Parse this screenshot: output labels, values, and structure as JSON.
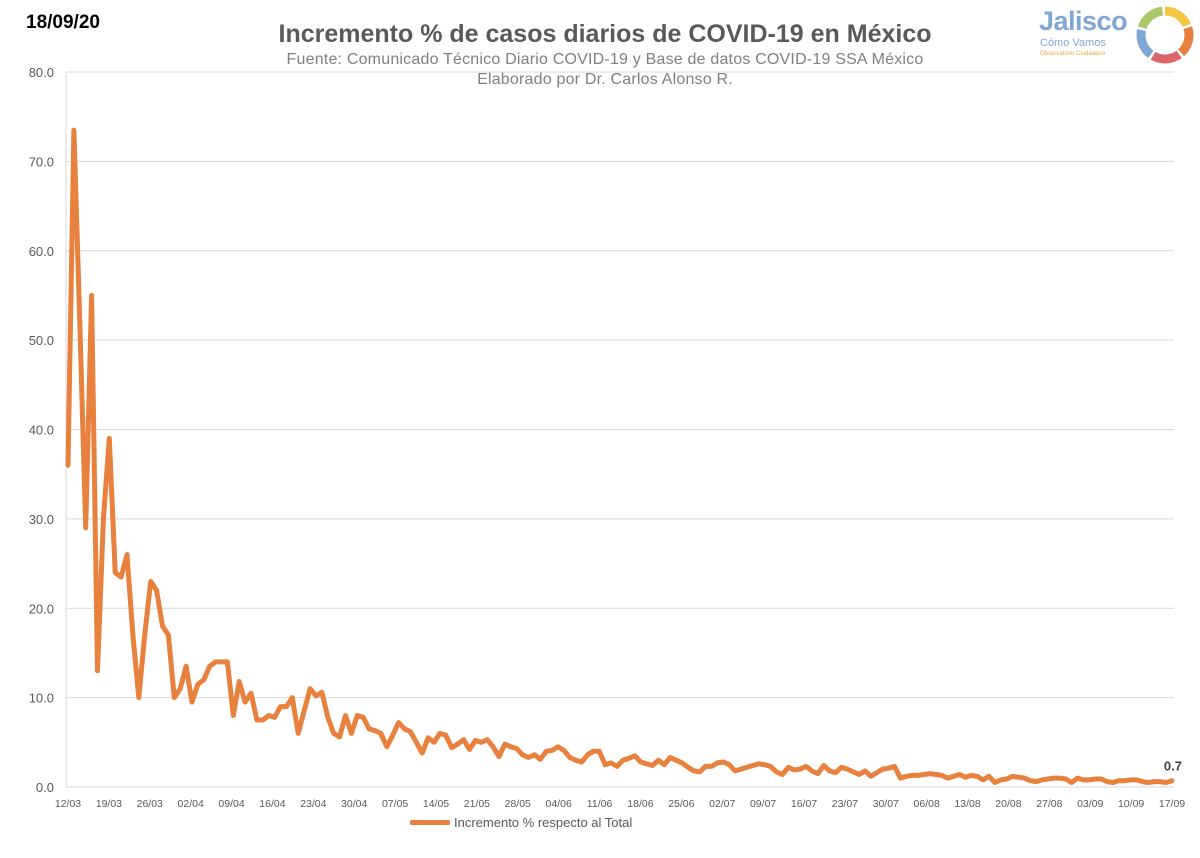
{
  "header": {
    "date": "18/09/20",
    "title": "Incremento % de casos diarios de COVID-19 en México",
    "source": "Fuente: Comunicado Técnico Diario COVID-19 y Base de datos COVID-19 SSA México",
    "author": "Elaborado por Dr. Carlos Alonso R."
  },
  "logo": {
    "name": "Jalisco",
    "subtitle": "Cómo Vamos",
    "tagline": "Observatorio Ciudadano",
    "colors": [
      "#f2c744",
      "#e7813d",
      "#d8666a",
      "#7fa7d3",
      "#a8c86b"
    ]
  },
  "chart_data": {
    "type": "line",
    "title": "Incremento % de casos diarios de COVID-19 en México",
    "xlabel": "",
    "ylabel": "",
    "ylim": [
      0,
      80
    ],
    "y_ticks": [
      "0.0",
      "10.0",
      "20.0",
      "30.0",
      "40.0",
      "50.0",
      "60.0",
      "70.0",
      "80.0"
    ],
    "x_tick_labels": [
      "12/03",
      "19/03",
      "26/03",
      "02/04",
      "09/04",
      "16/04",
      "23/04",
      "30/04",
      "07/05",
      "14/05",
      "21/05",
      "28/05",
      "04/06",
      "11/06",
      "18/06",
      "25/06",
      "02/07",
      "09/07",
      "16/07",
      "23/07",
      "30/07",
      "06/08",
      "13/08",
      "20/08",
      "27/08",
      "03/09",
      "10/09",
      "17/09"
    ],
    "grid": true,
    "legend_position": "bottom",
    "last_value_label": "0.7",
    "series": [
      {
        "name": "Incremento % respecto al Total",
        "color": "#e7813d",
        "values": [
          36,
          73.5,
          52,
          29,
          55,
          13,
          30,
          39,
          24,
          23.5,
          26,
          17,
          10,
          17,
          23,
          22,
          18,
          17,
          10,
          11,
          13.5,
          9.5,
          11.5,
          12,
          13.5,
          14,
          14,
          14,
          8,
          11.8,
          9.5,
          10.5,
          7.5,
          7.5,
          8,
          7.8,
          9,
          9,
          10,
          6,
          8.5,
          11,
          10.2,
          10.6,
          7.8,
          6,
          5.6,
          8,
          6,
          8,
          7.8,
          6.5,
          6.3,
          6,
          4.5,
          5.8,
          7.2,
          6.5,
          6.2,
          5,
          3.8,
          5.5,
          5,
          6,
          5.8,
          4.4,
          4.8,
          5.3,
          4.2,
          5.2,
          5,
          5.3,
          4.5,
          3.4,
          4.8,
          4.5,
          4.3,
          3.6,
          3.3,
          3.6,
          3.1,
          4,
          4.1,
          4.5,
          4.1,
          3.3,
          3,
          2.8,
          3.6,
          4,
          4,
          2.5,
          2.7,
          2.3,
          3,
          3.2,
          3.5,
          2.8,
          2.6,
          2.4,
          3,
          2.5,
          3.3,
          3,
          2.7,
          2.2,
          1.8,
          1.7,
          2.3,
          2.3,
          2.7,
          2.8,
          2.5,
          1.8,
          2,
          2.2,
          2.4,
          2.6,
          2.5,
          2.3,
          1.7,
          1.4,
          2.2,
          1.9,
          2,
          2.3,
          1.8,
          1.5,
          2.4,
          1.8,
          1.6,
          2.2,
          2,
          1.7,
          1.4,
          1.8,
          1.2,
          1.6,
          2,
          2.1,
          2.3,
          1,
          1.2,
          1.3,
          1.3,
          1.4,
          1.5,
          1.4,
          1.3,
          1,
          1.2,
          1.4,
          1.1,
          1.3,
          1.2,
          0.8,
          1.2,
          0.5,
          0.8,
          0.9,
          1.2,
          1.1,
          1,
          0.7,
          0.6,
          0.8,
          0.9,
          1,
          1,
          0.9,
          0.5,
          1,
          0.8,
          0.8,
          0.9,
          0.9,
          0.6,
          0.5,
          0.7,
          0.7,
          0.8,
          0.8,
          0.6,
          0.5,
          0.6,
          0.6,
          0.5,
          0.7
        ]
      }
    ]
  }
}
